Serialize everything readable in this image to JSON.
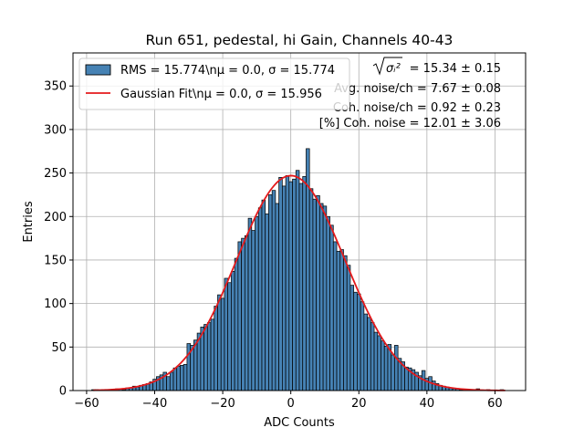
{
  "chart_data": {
    "type": "bar",
    "title": "Run 651, pedestal, hi Gain, Channels 40-43",
    "xlabel": "ADC Counts",
    "ylabel": "Entries",
    "xlim": [
      -64,
      69
    ],
    "ylim": [
      0,
      388
    ],
    "xticks": [
      -60,
      -40,
      -20,
      0,
      20,
      40,
      60
    ],
    "yticks": [
      0,
      50,
      100,
      150,
      200,
      250,
      300,
      350
    ],
    "grid": true,
    "bin_width": 1,
    "bins": [
      {
        "x": -58,
        "y": 1
      },
      {
        "x": -57,
        "y": 1
      },
      {
        "x": -56,
        "y": 0
      },
      {
        "x": -55,
        "y": 1
      },
      {
        "x": -54,
        "y": 0
      },
      {
        "x": -53,
        "y": 1
      },
      {
        "x": -52,
        "y": 1
      },
      {
        "x": -51,
        "y": 2
      },
      {
        "x": -50,
        "y": 2
      },
      {
        "x": -49,
        "y": 1
      },
      {
        "x": -48,
        "y": 3
      },
      {
        "x": -47,
        "y": 3
      },
      {
        "x": -46,
        "y": 5
      },
      {
        "x": -45,
        "y": 4
      },
      {
        "x": -44,
        "y": 6
      },
      {
        "x": -43,
        "y": 7
      },
      {
        "x": -42,
        "y": 8
      },
      {
        "x": -41,
        "y": 10
      },
      {
        "x": -40,
        "y": 13
      },
      {
        "x": -39,
        "y": 16
      },
      {
        "x": -38,
        "y": 18
      },
      {
        "x": -37,
        "y": 21
      },
      {
        "x": -36,
        "y": 16
      },
      {
        "x": -35,
        "y": 21
      },
      {
        "x": -34,
        "y": 26
      },
      {
        "x": -33,
        "y": 28
      },
      {
        "x": -32,
        "y": 29
      },
      {
        "x": -31,
        "y": 30
      },
      {
        "x": -30,
        "y": 54
      },
      {
        "x": -29,
        "y": 52
      },
      {
        "x": -28,
        "y": 58
      },
      {
        "x": -27,
        "y": 66
      },
      {
        "x": -26,
        "y": 73
      },
      {
        "x": -25,
        "y": 76
      },
      {
        "x": -24,
        "y": 78
      },
      {
        "x": -23,
        "y": 82
      },
      {
        "x": -22,
        "y": 97
      },
      {
        "x": -21,
        "y": 110
      },
      {
        "x": -20,
        "y": 106
      },
      {
        "x": -19,
        "y": 129
      },
      {
        "x": -18,
        "y": 124
      },
      {
        "x": -17,
        "y": 137
      },
      {
        "x": -16,
        "y": 152
      },
      {
        "x": -15,
        "y": 171
      },
      {
        "x": -14,
        "y": 175
      },
      {
        "x": -13,
        "y": 178
      },
      {
        "x": -12,
        "y": 198
      },
      {
        "x": -11,
        "y": 184
      },
      {
        "x": -10,
        "y": 200
      },
      {
        "x": -9,
        "y": 210
      },
      {
        "x": -8,
        "y": 219
      },
      {
        "x": -7,
        "y": 203
      },
      {
        "x": -6,
        "y": 225
      },
      {
        "x": -5,
        "y": 230
      },
      {
        "x": -4,
        "y": 215
      },
      {
        "x": -3,
        "y": 245
      },
      {
        "x": -2,
        "y": 235
      },
      {
        "x": -1,
        "y": 247
      },
      {
        "x": 0,
        "y": 240
      },
      {
        "x": 1,
        "y": 243
      },
      {
        "x": 2,
        "y": 253
      },
      {
        "x": 3,
        "y": 238
      },
      {
        "x": 4,
        "y": 246
      },
      {
        "x": 5,
        "y": 278
      },
      {
        "x": 6,
        "y": 232
      },
      {
        "x": 7,
        "y": 220
      },
      {
        "x": 8,
        "y": 224
      },
      {
        "x": 9,
        "y": 215
      },
      {
        "x": 10,
        "y": 212
      },
      {
        "x": 11,
        "y": 200
      },
      {
        "x": 12,
        "y": 190
      },
      {
        "x": 13,
        "y": 171
      },
      {
        "x": 14,
        "y": 160
      },
      {
        "x": 15,
        "y": 162
      },
      {
        "x": 16,
        "y": 155
      },
      {
        "x": 17,
        "y": 144
      },
      {
        "x": 18,
        "y": 121
      },
      {
        "x": 19,
        "y": 113
      },
      {
        "x": 20,
        "y": 111
      },
      {
        "x": 21,
        "y": 102
      },
      {
        "x": 22,
        "y": 88
      },
      {
        "x": 23,
        "y": 84
      },
      {
        "x": 24,
        "y": 78
      },
      {
        "x": 25,
        "y": 67
      },
      {
        "x": 26,
        "y": 63
      },
      {
        "x": 27,
        "y": 57
      },
      {
        "x": 28,
        "y": 51
      },
      {
        "x": 29,
        "y": 53
      },
      {
        "x": 30,
        "y": 41
      },
      {
        "x": 31,
        "y": 52
      },
      {
        "x": 32,
        "y": 37
      },
      {
        "x": 33,
        "y": 33
      },
      {
        "x": 34,
        "y": 27
      },
      {
        "x": 35,
        "y": 26
      },
      {
        "x": 36,
        "y": 24
      },
      {
        "x": 37,
        "y": 21
      },
      {
        "x": 38,
        "y": 17
      },
      {
        "x": 39,
        "y": 23
      },
      {
        "x": 40,
        "y": 14
      },
      {
        "x": 41,
        "y": 16
      },
      {
        "x": 42,
        "y": 11
      },
      {
        "x": 43,
        "y": 8
      },
      {
        "x": 44,
        "y": 6
      },
      {
        "x": 45,
        "y": 5
      },
      {
        "x": 46,
        "y": 4
      },
      {
        "x": 47,
        "y": 3
      },
      {
        "x": 48,
        "y": 2
      },
      {
        "x": 49,
        "y": 2
      },
      {
        "x": 50,
        "y": 1
      },
      {
        "x": 51,
        "y": 1
      },
      {
        "x": 52,
        "y": 0
      },
      {
        "x": 53,
        "y": 1
      },
      {
        "x": 54,
        "y": 0
      },
      {
        "x": 55,
        "y": 2
      },
      {
        "x": 56,
        "y": 0
      },
      {
        "x": 57,
        "y": 0
      },
      {
        "x": 58,
        "y": 1
      },
      {
        "x": 59,
        "y": 0
      },
      {
        "x": 60,
        "y": 0
      },
      {
        "x": 61,
        "y": 0
      },
      {
        "x": 62,
        "y": 1
      }
    ],
    "fit": {
      "type": "gaussian",
      "mu": 0.0,
      "sigma": 15.956,
      "amplitude": 247,
      "x_range": [
        -58,
        63
      ]
    },
    "series": [
      {
        "name": "RMS = 15.774\\n$\\mu$ = 0.0, $\\sigma$ = 15.774",
        "color": "#4682b4",
        "edge_color": "#000000",
        "kind": "histogram"
      },
      {
        "name": "Gaussian Fit\\n$\\mu$ = 0.0, $\\sigma$ = 15.956",
        "color": "#e41a1c",
        "kind": "line"
      }
    ],
    "legend": {
      "position": "top-left",
      "entries": [
        {
          "text": "RMS = 15.774\\nμ = 0.0, σ = 15.774"
        },
        {
          "text": "Gaussian Fit\\nμ = 0.0, σ = 15.956"
        }
      ]
    },
    "annotations": [
      {
        "text_sqrt": "σᵢ²",
        "text": "= 15.34 ± 0.15"
      },
      {
        "text": "Avg. noise/ch = 7.67 ± 0.08"
      },
      {
        "text": "Coh. noise/ch = 0.92 ± 0.23"
      },
      {
        "text": "[%] Coh. noise = 12.01 ± 3.06"
      }
    ]
  }
}
